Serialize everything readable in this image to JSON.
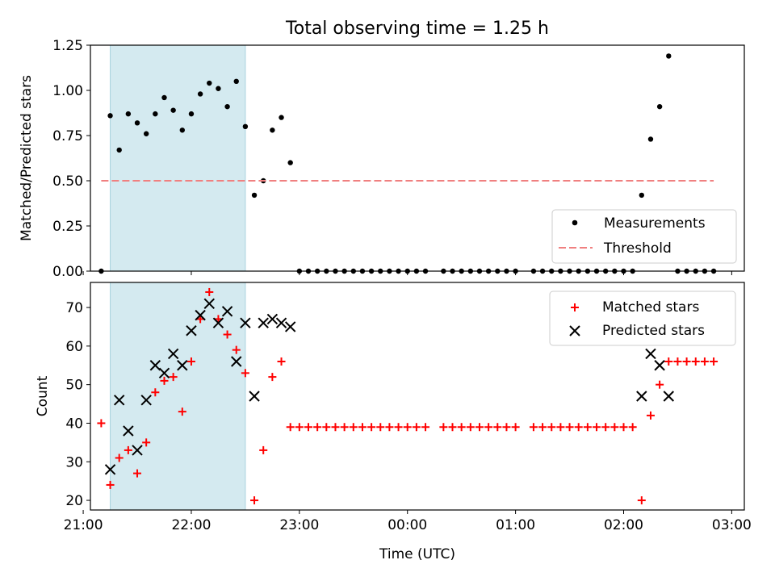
{
  "chart_data": [
    {
      "type": "scatter",
      "title": "Total observing time = 1.25 h",
      "xlabel": "",
      "ylabel": "Matched/Predicted stars",
      "xlim": [
        "21:04",
        "03:07"
      ],
      "ylim": [
        0,
        1.25
      ],
      "yticks": [
        "0.00",
        "0.25",
        "0.50",
        "0.75",
        "1.00",
        "1.25"
      ],
      "grid": false,
      "legend": "lower right",
      "highlight_span": {
        "start": "21:15",
        "end": "22:30",
        "color": "#d4eaf0"
      },
      "series": [
        {
          "name": "Measurements",
          "marker": "dot",
          "color": "#000000",
          "points": [
            [
              "21:10",
              0.0
            ],
            [
              "21:15",
              0.86
            ],
            [
              "21:20",
              0.67
            ],
            [
              "21:25",
              0.87
            ],
            [
              "21:30",
              0.82
            ],
            [
              "21:35",
              0.76
            ],
            [
              "21:40",
              0.87
            ],
            [
              "21:45",
              0.96
            ],
            [
              "21:50",
              0.89
            ],
            [
              "21:55",
              0.78
            ],
            [
              "22:00",
              0.87
            ],
            [
              "22:05",
              0.98
            ],
            [
              "22:10",
              1.04
            ],
            [
              "22:15",
              1.01
            ],
            [
              "22:20",
              0.91
            ],
            [
              "22:25",
              1.05
            ],
            [
              "22:30",
              0.8
            ],
            [
              "22:35",
              0.42
            ],
            [
              "22:40",
              0.5
            ],
            [
              "22:45",
              0.78
            ],
            [
              "22:50",
              0.85
            ],
            [
              "22:55",
              0.6
            ],
            [
              "23:00",
              0.0
            ],
            [
              "23:05",
              0.0
            ],
            [
              "23:10",
              0.0
            ],
            [
              "23:15",
              0.0
            ],
            [
              "23:20",
              0.0
            ],
            [
              "23:25",
              0.0
            ],
            [
              "23:30",
              0.0
            ],
            [
              "23:35",
              0.0
            ],
            [
              "23:40",
              0.0
            ],
            [
              "23:45",
              0.0
            ],
            [
              "23:50",
              0.0
            ],
            [
              "23:55",
              0.0
            ],
            [
              "00:00",
              0.0
            ],
            [
              "00:05",
              0.0
            ],
            [
              "00:10",
              0.0
            ],
            [
              "00:20",
              0.0
            ],
            [
              "00:25",
              0.0
            ],
            [
              "00:30",
              0.0
            ],
            [
              "00:35",
              0.0
            ],
            [
              "00:40",
              0.0
            ],
            [
              "00:45",
              0.0
            ],
            [
              "00:50",
              0.0
            ],
            [
              "00:55",
              0.0
            ],
            [
              "01:00",
              0.0
            ],
            [
              "01:10",
              0.0
            ],
            [
              "01:15",
              0.0
            ],
            [
              "01:20",
              0.0
            ],
            [
              "01:25",
              0.0
            ],
            [
              "01:30",
              0.0
            ],
            [
              "01:35",
              0.0
            ],
            [
              "01:40",
              0.0
            ],
            [
              "01:45",
              0.0
            ],
            [
              "01:50",
              0.0
            ],
            [
              "01:55",
              0.0
            ],
            [
              "02:00",
              0.0
            ],
            [
              "02:05",
              0.0
            ],
            [
              "02:10",
              0.42
            ],
            [
              "02:15",
              0.73
            ],
            [
              "02:20",
              0.91
            ],
            [
              "02:25",
              1.19
            ],
            [
              "02:30",
              0.0
            ],
            [
              "02:35",
              0.0
            ],
            [
              "02:40",
              0.0
            ],
            [
              "02:45",
              0.0
            ],
            [
              "02:50",
              0.0
            ]
          ]
        },
        {
          "name": "Threshold",
          "marker": "dashed-line",
          "color": "#f08080",
          "points": [
            [
              "21:10",
              0.5
            ],
            [
              "02:50",
              0.5
            ]
          ]
        }
      ]
    },
    {
      "type": "scatter",
      "title": "",
      "xlabel": "Time (UTC)",
      "ylabel": "Count",
      "xlim": [
        "21:04",
        "03:07"
      ],
      "ylim": [
        17.5,
        76.5
      ],
      "xticks": [
        "21:00",
        "22:00",
        "23:00",
        "00:00",
        "01:00",
        "02:00",
        "03:00"
      ],
      "yticks": [
        "20",
        "30",
        "40",
        "50",
        "60",
        "70"
      ],
      "grid": false,
      "legend": "upper right",
      "highlight_span": {
        "start": "21:15",
        "end": "22:30",
        "color": "#d4eaf0"
      },
      "series": [
        {
          "name": "Matched stars",
          "marker": "plus",
          "color": "#ff0000",
          "points": [
            [
              "21:10",
              40
            ],
            [
              "21:15",
              24
            ],
            [
              "21:20",
              31
            ],
            [
              "21:25",
              33
            ],
            [
              "21:30",
              27
            ],
            [
              "21:35",
              35
            ],
            [
              "21:40",
              48
            ],
            [
              "21:45",
              51
            ],
            [
              "21:50",
              52
            ],
            [
              "21:55",
              43
            ],
            [
              "22:00",
              56
            ],
            [
              "22:05",
              67
            ],
            [
              "22:10",
              74
            ],
            [
              "22:15",
              67
            ],
            [
              "22:20",
              63
            ],
            [
              "22:25",
              59
            ],
            [
              "22:30",
              53
            ],
            [
              "22:35",
              20
            ],
            [
              "22:40",
              33
            ],
            [
              "22:45",
              52
            ],
            [
              "22:50",
              56
            ],
            [
              "22:55",
              39
            ],
            [
              "23:00",
              39
            ],
            [
              "23:05",
              39
            ],
            [
              "23:10",
              39
            ],
            [
              "23:15",
              39
            ],
            [
              "23:20",
              39
            ],
            [
              "23:25",
              39
            ],
            [
              "23:30",
              39
            ],
            [
              "23:35",
              39
            ],
            [
              "23:40",
              39
            ],
            [
              "23:45",
              39
            ],
            [
              "23:50",
              39
            ],
            [
              "23:55",
              39
            ],
            [
              "00:00",
              39
            ],
            [
              "00:05",
              39
            ],
            [
              "00:10",
              39
            ],
            [
              "00:20",
              39
            ],
            [
              "00:25",
              39
            ],
            [
              "00:30",
              39
            ],
            [
              "00:35",
              39
            ],
            [
              "00:40",
              39
            ],
            [
              "00:45",
              39
            ],
            [
              "00:50",
              39
            ],
            [
              "00:55",
              39
            ],
            [
              "01:00",
              39
            ],
            [
              "01:10",
              39
            ],
            [
              "01:15",
              39
            ],
            [
              "01:20",
              39
            ],
            [
              "01:25",
              39
            ],
            [
              "01:30",
              39
            ],
            [
              "01:35",
              39
            ],
            [
              "01:40",
              39
            ],
            [
              "01:45",
              39
            ],
            [
              "01:50",
              39
            ],
            [
              "01:55",
              39
            ],
            [
              "02:00",
              39
            ],
            [
              "02:05",
              39
            ],
            [
              "02:10",
              20
            ],
            [
              "02:15",
              42
            ],
            [
              "02:20",
              50
            ],
            [
              "02:25",
              56
            ],
            [
              "02:30",
              56
            ],
            [
              "02:35",
              56
            ],
            [
              "02:40",
              56
            ],
            [
              "02:45",
              56
            ],
            [
              "02:50",
              56
            ]
          ]
        },
        {
          "name": "Predicted stars",
          "marker": "x",
          "color": "#000000",
          "points": [
            [
              "21:15",
              28
            ],
            [
              "21:20",
              46
            ],
            [
              "21:25",
              38
            ],
            [
              "21:30",
              33
            ],
            [
              "21:35",
              46
            ],
            [
              "21:40",
              55
            ],
            [
              "21:45",
              53
            ],
            [
              "21:50",
              58
            ],
            [
              "21:55",
              55
            ],
            [
              "22:00",
              64
            ],
            [
              "22:05",
              68
            ],
            [
              "22:10",
              71
            ],
            [
              "22:15",
              66
            ],
            [
              "22:20",
              69
            ],
            [
              "22:25",
              56
            ],
            [
              "22:30",
              66
            ],
            [
              "22:35",
              47
            ],
            [
              "22:40",
              66
            ],
            [
              "22:45",
              67
            ],
            [
              "22:50",
              66
            ],
            [
              "22:55",
              65
            ],
            [
              "02:10",
              47
            ],
            [
              "02:15",
              58
            ],
            [
              "02:20",
              55
            ],
            [
              "02:25",
              47
            ]
          ]
        }
      ]
    }
  ]
}
